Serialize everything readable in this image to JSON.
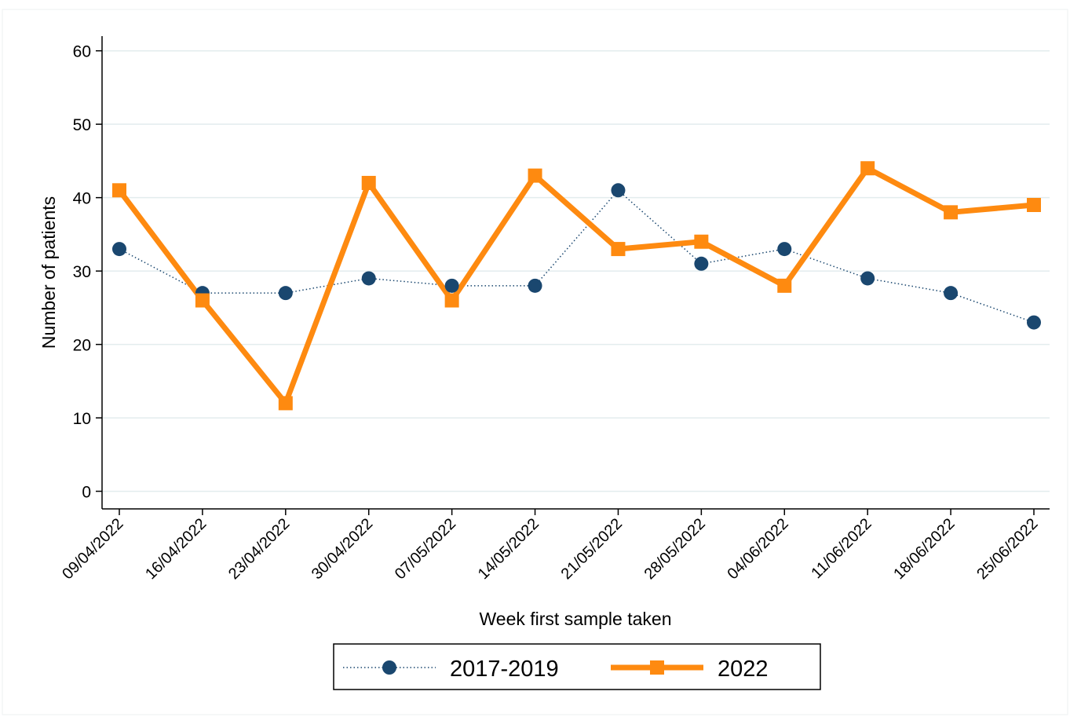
{
  "chart_data": {
    "type": "line",
    "x_label": "Week first sample taken",
    "y_label": "Number of patients",
    "categories": [
      "09/04/2022",
      "16/04/2022",
      "23/04/2022",
      "30/04/2022",
      "07/05/2022",
      "14/05/2022",
      "21/05/2022",
      "28/05/2022",
      "04/06/2022",
      "11/06/2022",
      "18/06/2022",
      "25/06/2022"
    ],
    "series": [
      {
        "name": "2017-2019",
        "color": "#1a476f",
        "style": "dotted",
        "marker": "circle",
        "values": [
          33,
          27,
          27,
          29,
          28,
          28,
          41,
          31,
          33,
          29,
          27,
          23
        ]
      },
      {
        "name": "2022",
        "color": "#fe8a10",
        "style": "solid",
        "marker": "square",
        "values": [
          41,
          26,
          12,
          42,
          26,
          43,
          33,
          34,
          28,
          44,
          38,
          39
        ]
      }
    ],
    "ylim": [
      -2.4,
      62
    ],
    "yticks": [
      0,
      10,
      20,
      30,
      40,
      50,
      60
    ],
    "grid": true,
    "legend": "bottom"
  }
}
